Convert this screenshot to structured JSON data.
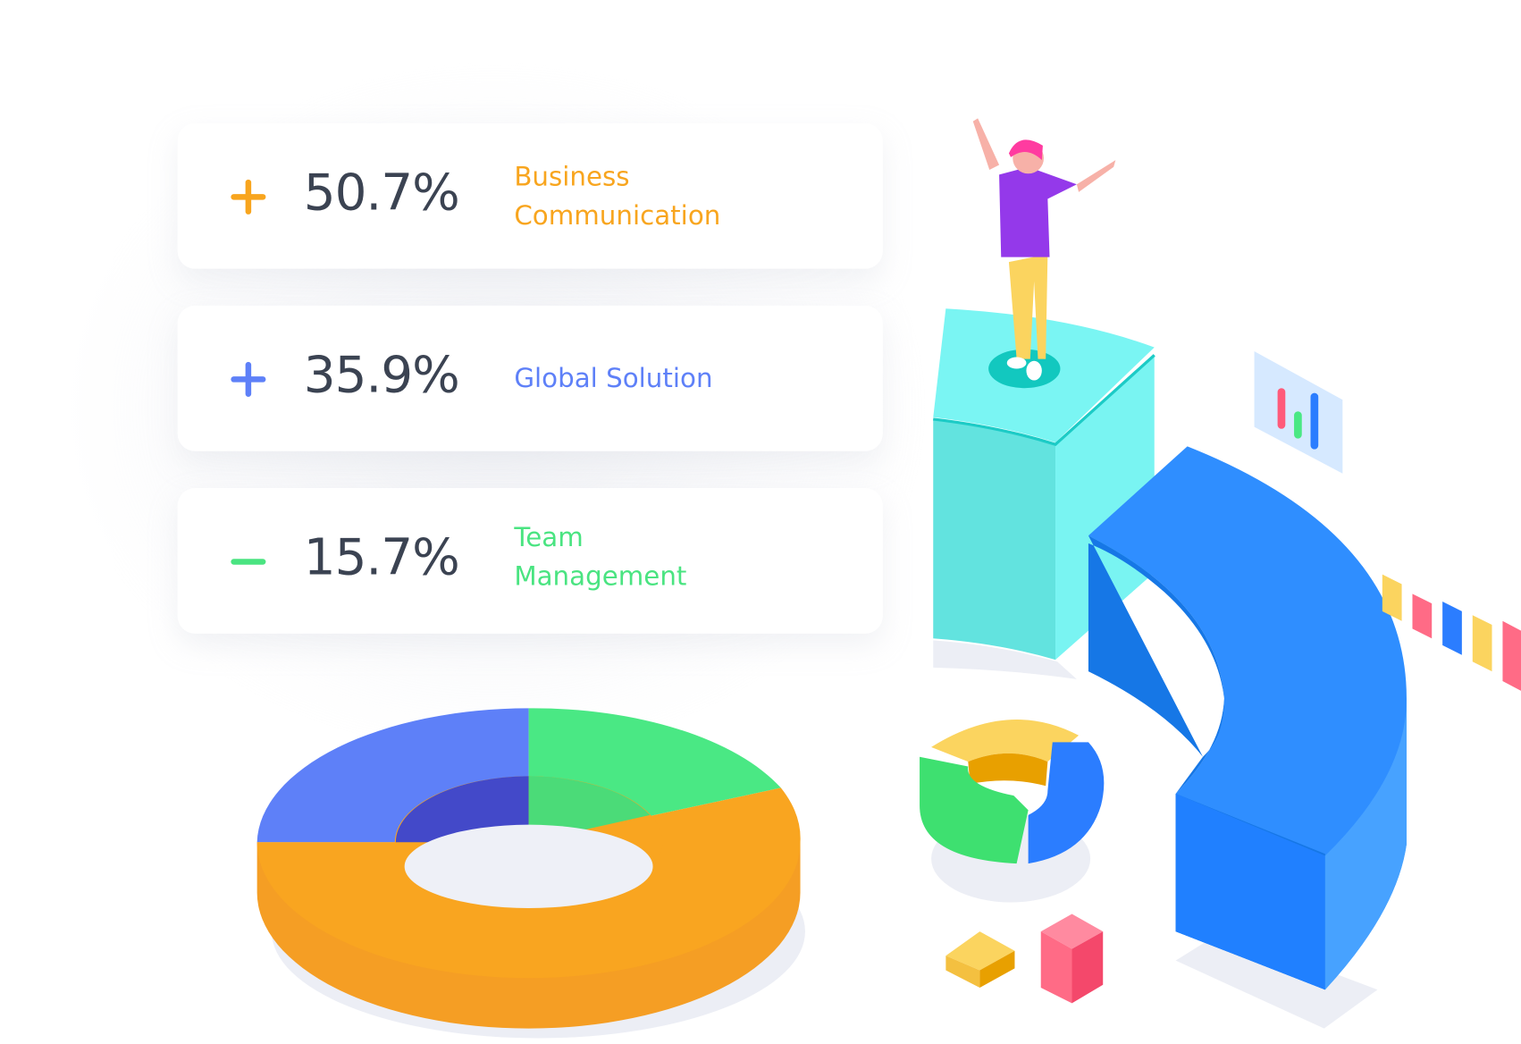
{
  "stats": [
    {
      "sign": "plus",
      "value": "50.7%",
      "label_lines": [
        "Business",
        "Communication"
      ],
      "color": "#f8a51e"
    },
    {
      "sign": "plus",
      "value": "35.9%",
      "label_lines": [
        "Global Solution"
      ],
      "color": "#5e80f8"
    },
    {
      "sign": "minus",
      "value": "15.7%",
      "label_lines": [
        "Team",
        "Management"
      ],
      "color": "#4ae481"
    }
  ],
  "colors": {
    "text": "#3b4352",
    "orange": "#f9a520",
    "blue": "#2b8cff",
    "green": "#4ae884",
    "indigo": "#5e80f8",
    "cyan": "#79f4f2"
  }
}
